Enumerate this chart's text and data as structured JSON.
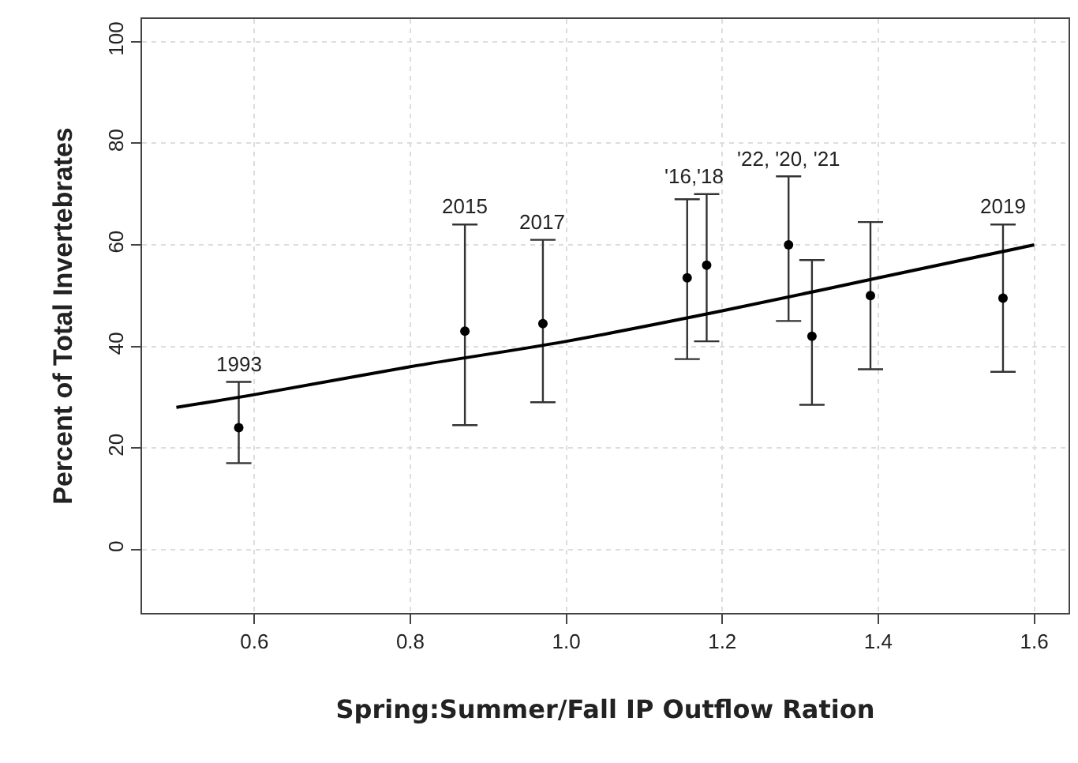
{
  "chart_data": {
    "type": "scatter",
    "xlabel": "Spring:Summer/Fall IP Outflow Ration",
    "ylabel": "Percent of Total Invertebrates",
    "xlim": [
      0.456,
      1.644
    ],
    "ylim": [
      -12.5,
      104.5
    ],
    "xticks": [
      {
        "value": 0.6,
        "label": "0.6"
      },
      {
        "value": 0.8,
        "label": "0.8"
      },
      {
        "value": 1.0,
        "label": "1.0"
      },
      {
        "value": 1.2,
        "label": "1.2"
      },
      {
        "value": 1.4,
        "label": "1.4"
      },
      {
        "value": 1.6,
        "label": "1.6"
      }
    ],
    "yticks": [
      0,
      20,
      40,
      60,
      80,
      100
    ],
    "grid": true,
    "marker": "circle",
    "series": [
      {
        "color": "#000000",
        "x": [
          0.58,
          0.87,
          0.97,
          1.155,
          1.18,
          1.285,
          1.315,
          1.39,
          1.56
        ],
        "values": [
          24,
          43,
          44.5,
          53.5,
          56,
          60,
          42,
          50,
          49.5
        ],
        "errors": [
          [
            17,
            33
          ],
          [
            24.5,
            64
          ],
          [
            29,
            61
          ],
          [
            37.5,
            69
          ],
          [
            41,
            70
          ],
          [
            45,
            73.5
          ],
          [
            28.5,
            57
          ],
          [
            35.5,
            64.5
          ],
          [
            35,
            64
          ]
        ]
      },
      {
        "type": "line",
        "color": "#000000",
        "marker": "none",
        "line_style": "solid",
        "x": [
          0.5,
          0.6,
          0.8,
          1.0,
          1.2,
          1.4,
          1.6
        ],
        "values": [
          28,
          30.5,
          36,
          41,
          47,
          53.5,
          60
        ]
      }
    ],
    "annotations": [
      {
        "text": "1993",
        "x": 0.58,
        "y": 33
      },
      {
        "text": "2015",
        "x": 0.87,
        "y": 64
      },
      {
        "text": "2017",
        "x": 0.97,
        "y": 61
      },
      {
        "text": "'16,'18",
        "x": 1.165,
        "y": 70
      },
      {
        "text": "'22, '20, '21",
        "x": 1.285,
        "y": 73.5
      },
      {
        "text": "2019",
        "x": 1.56,
        "y": 64
      }
    ]
  }
}
